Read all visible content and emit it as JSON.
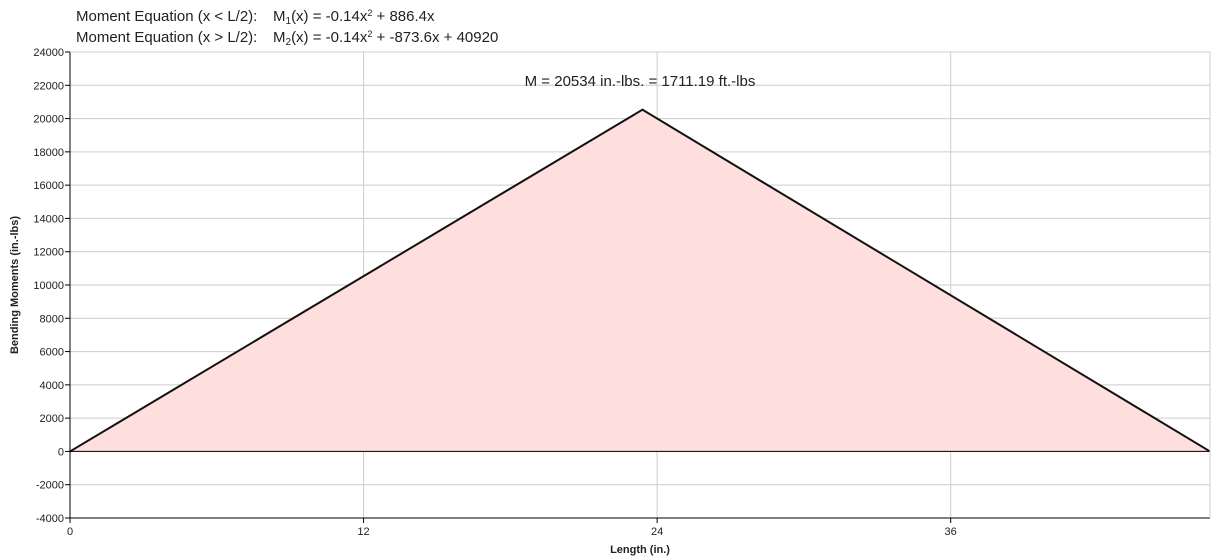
{
  "equations": {
    "left": {
      "label": "Moment Equation (x < L/2):",
      "func_prefix": "M",
      "func_sub": "1",
      "func_arg": "(x) = -0.14x",
      "power": "2",
      "rest": " + 886.4x"
    },
    "right": {
      "label": "Moment Equation (x > L/2):",
      "func_prefix": "M",
      "func_sub": "2",
      "func_arg": "(x) = -0.14x",
      "power": "2",
      "rest": " + -873.6x + 40920"
    }
  },
  "colors": {
    "fill": "#ffdede",
    "line": "#111111",
    "grid": "#cccccc",
    "axis": "#000000"
  },
  "chart_data": {
    "type": "area",
    "title": "",
    "xlabel": "Length (in.)",
    "ylabel": "Bending Moments (in.-lbs)",
    "x": [
      0,
      23.4,
      46.6
    ],
    "y": [
      0,
      20534,
      0
    ],
    "xlim": [
      0,
      46.6
    ],
    "ylim": [
      -4000,
      24000
    ],
    "xticks": [
      0,
      12,
      24,
      36
    ],
    "yticks": [
      -4000,
      -2000,
      0,
      2000,
      4000,
      6000,
      8000,
      10000,
      12000,
      14000,
      16000,
      18000,
      20000,
      22000,
      24000
    ],
    "grid": true,
    "annotation": "M = 20534 in.-lbs. = 1711.19 ft.-lbs"
  }
}
